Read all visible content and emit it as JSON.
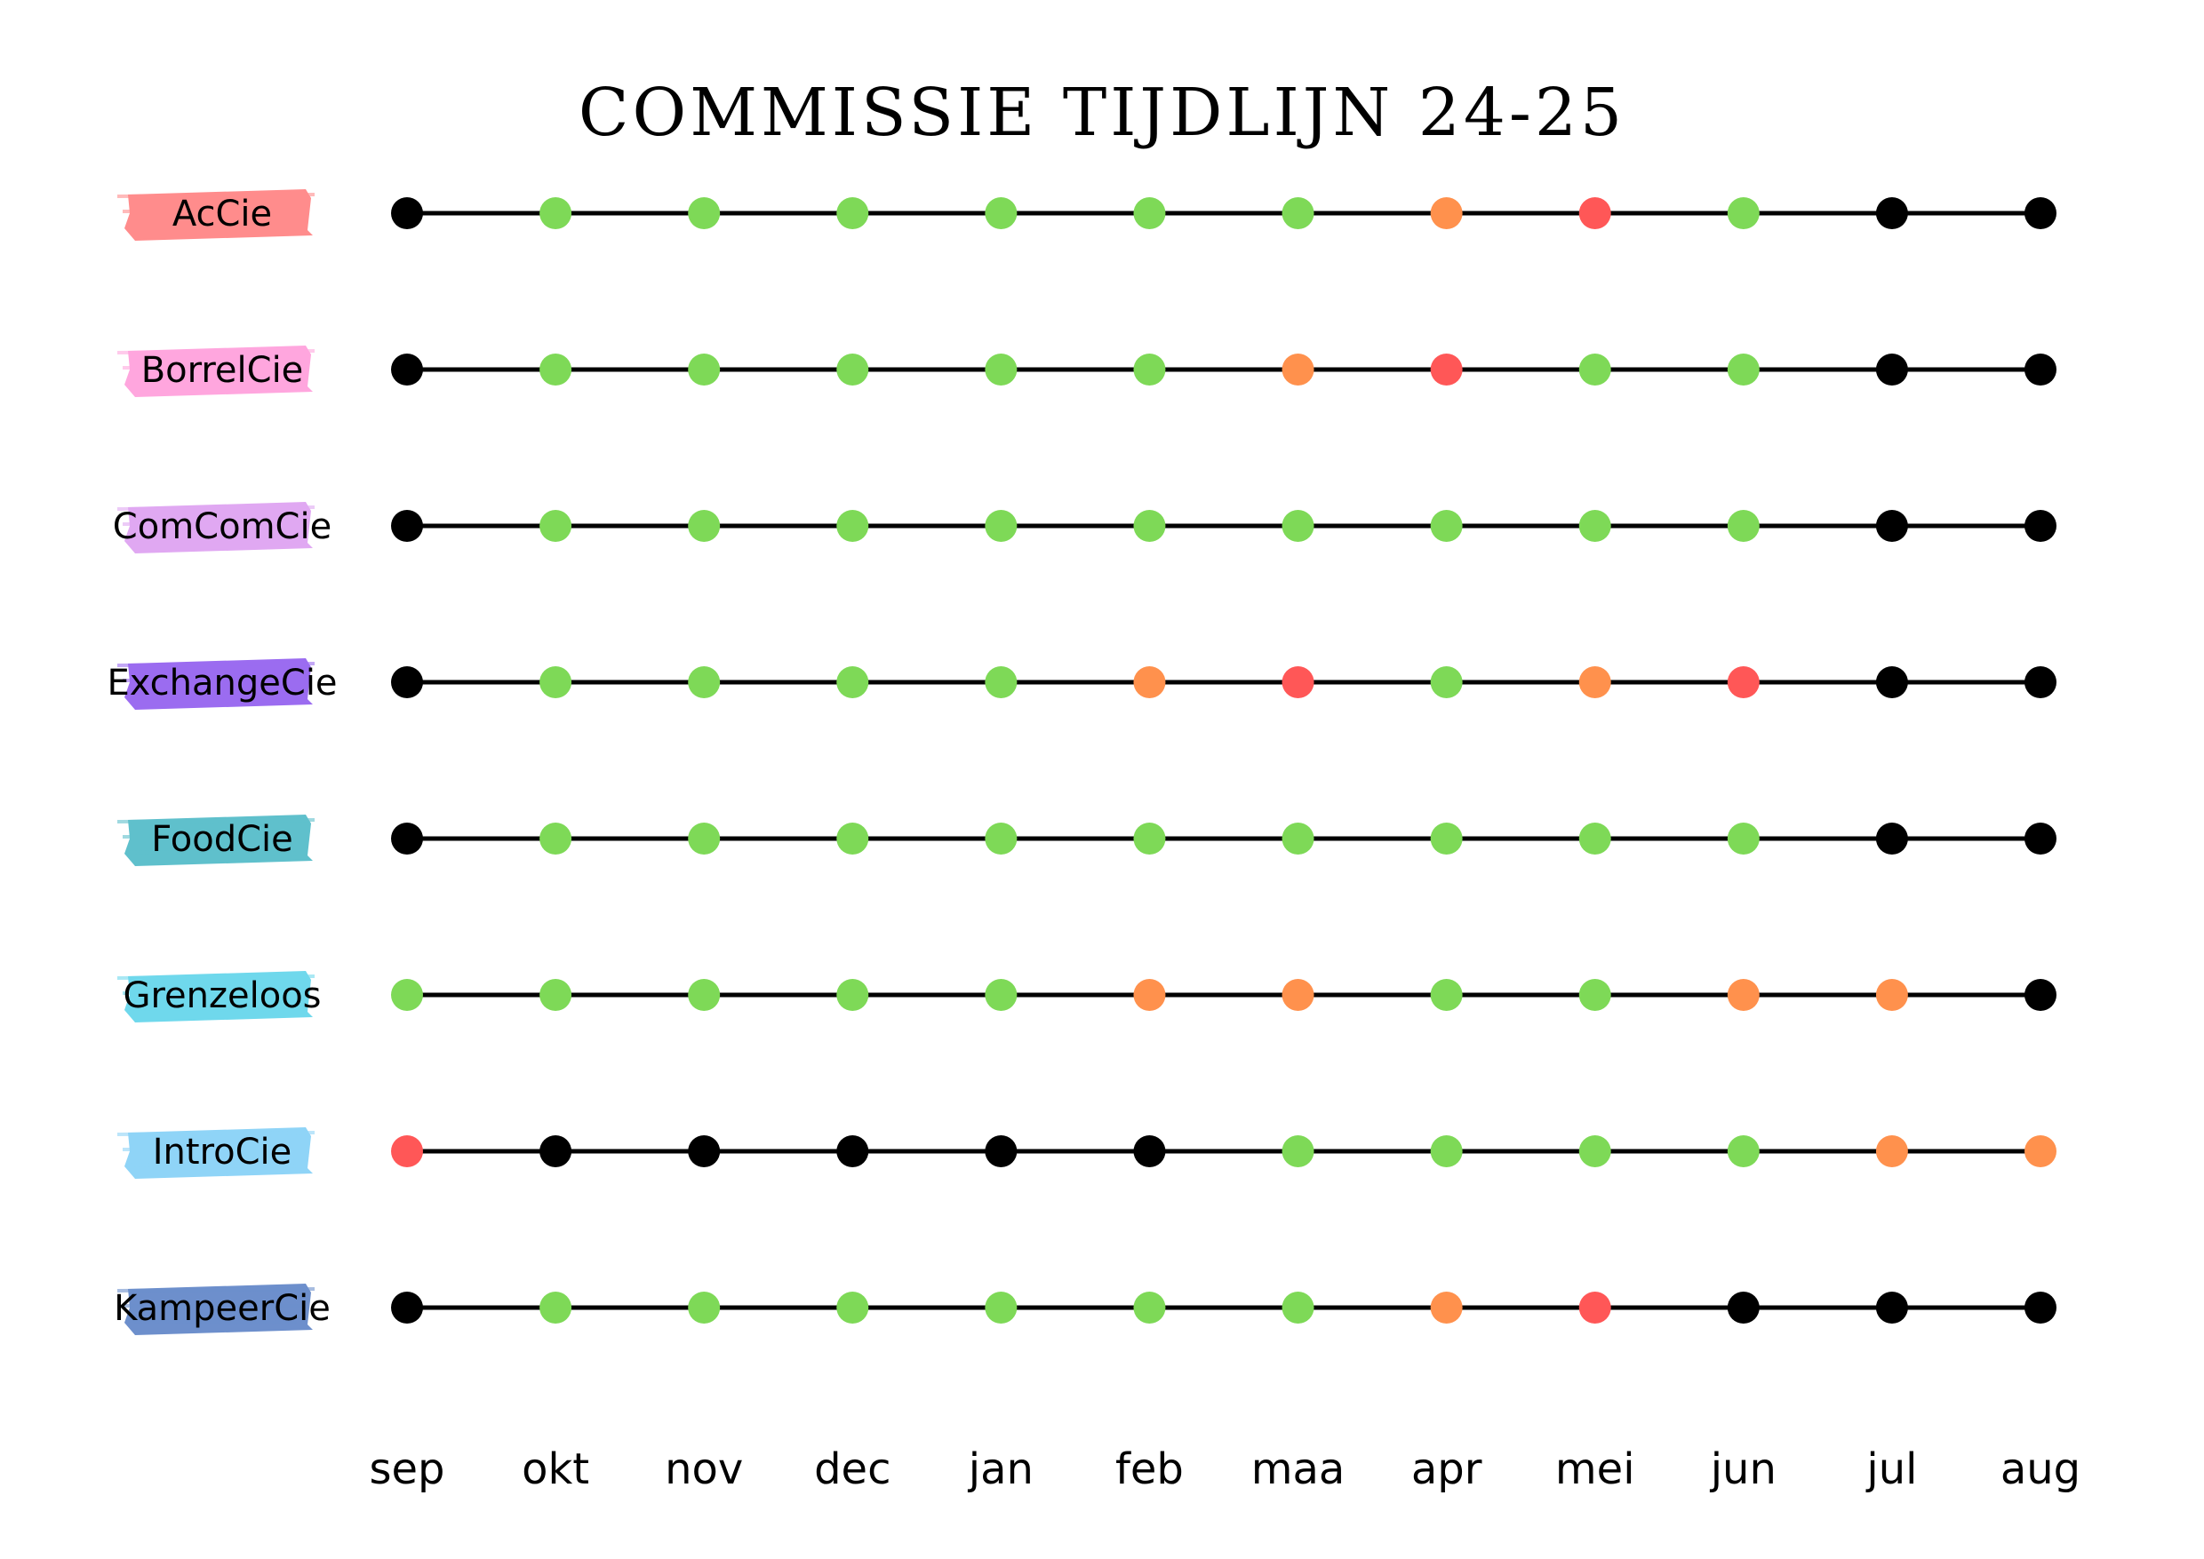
{
  "chart_data": {
    "type": "timeline",
    "title": "COMMISSIE TIJDLIJN 24-25",
    "months": [
      "sep",
      "okt",
      "nov",
      "dec",
      "jan",
      "feb",
      "maa",
      "apr",
      "mei",
      "jun",
      "jul",
      "aug"
    ],
    "status_colors": {
      "black": "#000000",
      "green": "#7ed957",
      "orange": "#ff914d",
      "red": "#ff5757"
    },
    "rows": [
      {
        "name": "AcCie",
        "color": "#ff8c8c",
        "status": [
          "black",
          "green",
          "green",
          "green",
          "green",
          "green",
          "green",
          "orange",
          "red",
          "green",
          "black",
          "black"
        ]
      },
      {
        "name": "BorrelCie",
        "color": "#ffa6de",
        "status": [
          "black",
          "green",
          "green",
          "green",
          "green",
          "green",
          "orange",
          "red",
          "green",
          "green",
          "black",
          "black"
        ]
      },
      {
        "name": "ComComCie",
        "color": "#e0a8f2",
        "status": [
          "black",
          "green",
          "green",
          "green",
          "green",
          "green",
          "green",
          "green",
          "green",
          "green",
          "black",
          "black"
        ]
      },
      {
        "name": "ExchangeCie",
        "color": "#9b6cf0",
        "status": [
          "black",
          "green",
          "green",
          "green",
          "green",
          "orange",
          "red",
          "green",
          "orange",
          "red",
          "black",
          "black"
        ]
      },
      {
        "name": "FoodCie",
        "color": "#5fc0cc",
        "status": [
          "black",
          "green",
          "green",
          "green",
          "green",
          "green",
          "green",
          "green",
          "green",
          "green",
          "black",
          "black"
        ]
      },
      {
        "name": "Grenzeloos",
        "color": "#6fd8ec",
        "status": [
          "green",
          "green",
          "green",
          "green",
          "green",
          "orange",
          "orange",
          "green",
          "green",
          "orange",
          "orange",
          "black"
        ]
      },
      {
        "name": "IntroCie",
        "color": "#8fd4f7",
        "status": [
          "red",
          "black",
          "black",
          "black",
          "black",
          "black",
          "green",
          "green",
          "green",
          "green",
          "orange",
          "orange"
        ]
      },
      {
        "name": "KampeerCie",
        "color": "#6d8fcc",
        "status": [
          "black",
          "green",
          "green",
          "green",
          "green",
          "green",
          "green",
          "orange",
          "red",
          "black",
          "black",
          "black"
        ]
      }
    ]
  }
}
